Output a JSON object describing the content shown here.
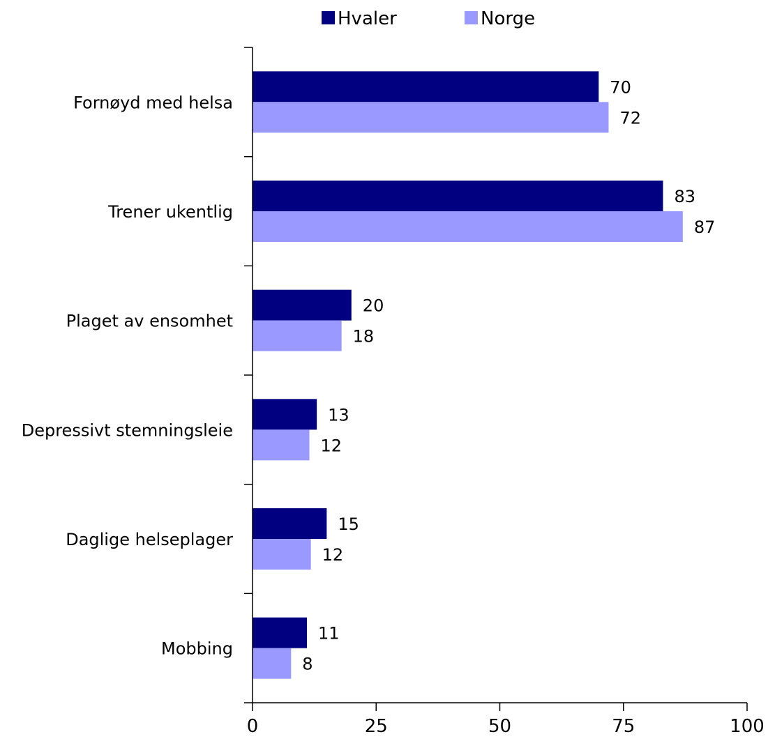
{
  "chart_data": {
    "type": "bar",
    "orientation": "horizontal",
    "categories": [
      "Fornøyd med helsa",
      "Trener ukentlig",
      "Plaget av ensomhet",
      "Depressivt stemningsleie",
      "Daglige helseplager",
      "Mobbing"
    ],
    "series": [
      {
        "name": "Hvaler",
        "color": "#000080",
        "values": [
          70,
          83,
          20,
          13,
          15,
          11
        ],
        "labels": [
          "70",
          "83",
          "20",
          "13",
          "15",
          "11"
        ]
      },
      {
        "name": "Norge",
        "color": "#9999ff",
        "values": [
          72,
          87,
          18,
          11.5,
          11.8,
          7.8
        ],
        "labels": [
          "72",
          "87",
          "18",
          "12",
          "12",
          "8"
        ]
      }
    ],
    "xlim": [
      0,
      100
    ],
    "xticks": [
      "0",
      "25",
      "50",
      "75",
      "100"
    ],
    "grid": false,
    "legend_position": "top"
  }
}
